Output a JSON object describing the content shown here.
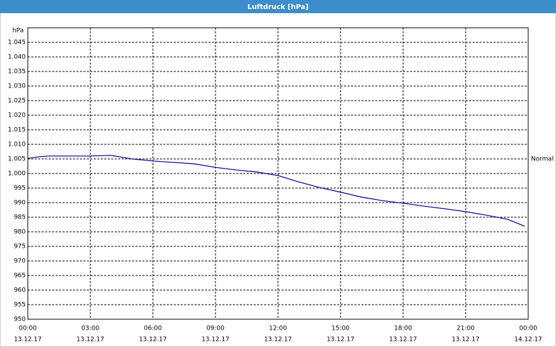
{
  "chart_data": {
    "type": "line",
    "title": "Luftdruck [hPa]",
    "y_unit": "hPa",
    "x": [
      0,
      0.5,
      1,
      2,
      3,
      4,
      5,
      6,
      7,
      8,
      9,
      10,
      11,
      12,
      13,
      14,
      15,
      16,
      17,
      18,
      19,
      20,
      21,
      22,
      23,
      23.5,
      23.83
    ],
    "series": [
      {
        "color": "#00008b",
        "values": [
          1005.2,
          1005.7,
          1006,
          1006,
          1006,
          1006.2,
          1005,
          1004.3,
          1003.8,
          1003.3,
          1002.1,
          1001.2,
          1000.5,
          999.3,
          997.1,
          995.2,
          993.6,
          991.9,
          990.7,
          989.8,
          988.8,
          987.9,
          986.9,
          985.7,
          984.3,
          982.9,
          981.9
        ]
      }
    ],
    "xlim": [
      0,
      24
    ],
    "xticks": [
      {
        "value": 0,
        "label": "00:00",
        "date": "13.12.17"
      },
      {
        "value": 3,
        "label": "03:00",
        "date": "13.12.17"
      },
      {
        "value": 6,
        "label": "06:00",
        "date": "13.12.17"
      },
      {
        "value": 9,
        "label": "09:00",
        "date": "13.12.17"
      },
      {
        "value": 12,
        "label": "12:00",
        "date": "13.12.17"
      },
      {
        "value": 15,
        "label": "15:00",
        "date": "13.12.17"
      },
      {
        "value": 18,
        "label": "18:00",
        "date": "13.12.17"
      },
      {
        "value": 21,
        "label": "21:00",
        "date": "13.12.17"
      },
      {
        "value": 24,
        "label": "00:00",
        "date": "14.12.17"
      }
    ],
    "ylim": [
      950,
      1050
    ],
    "yticks": [
      950,
      955,
      960,
      965,
      970,
      975,
      980,
      985,
      990,
      995,
      {
        "value": 1000,
        "label": "1.000"
      },
      {
        "value": 1005,
        "label": "1.005"
      },
      {
        "value": 1010,
        "label": "1.010"
      },
      {
        "value": 1015,
        "label": "1.015"
      },
      {
        "value": 1020,
        "label": "1.020"
      },
      {
        "value": 1025,
        "label": "1.025"
      },
      {
        "value": 1030,
        "label": "1.030"
      },
      {
        "value": 1035,
        "label": "1.035"
      },
      {
        "value": 1040,
        "label": "1.040"
      },
      {
        "value": 1045,
        "label": "1.045"
      }
    ],
    "reference": {
      "label": "Normal",
      "value": 1005
    },
    "grid": true
  }
}
